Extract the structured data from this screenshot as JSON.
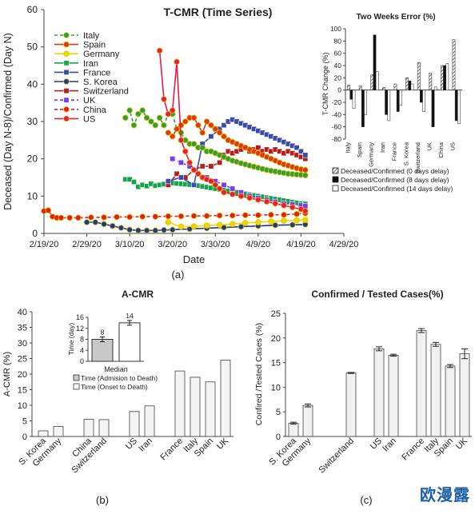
{
  "figure": {
    "watermark": "欧漫露"
  },
  "chart_data": [
    {
      "id": "a",
      "type": "line",
      "panel_label": "(a)",
      "title": "T-CMR (Time Series)",
      "xlabel": "Date",
      "ylabel": "Deceased (Day N-8)/Confirmed (Day N)",
      "ylim": [
        0,
        60
      ],
      "yticks": [
        0,
        10,
        20,
        30,
        40,
        50,
        60
      ],
      "xlim": [
        "2020-02-19",
        "2020-04-29"
      ],
      "xtick_labels": [
        "2/19/20",
        "2/29/20",
        "3/10/20",
        "3/20/20",
        "3/30/20",
        "4/9/20",
        "4/19/20",
        "4/29/20"
      ],
      "legend_position": "top-left",
      "series": [
        {
          "name": "Italy",
          "color": "#2e9e3e",
          "marker": "circle",
          "dash": "dashed",
          "x": [
            "2020-03-09",
            "2020-03-10",
            "2020-03-11",
            "2020-03-12",
            "2020-03-13",
            "2020-03-14",
            "2020-03-15",
            "2020-03-16",
            "2020-03-17",
            "2020-03-18",
            "2020-03-19",
            "2020-03-20",
            "2020-03-21",
            "2020-03-22",
            "2020-03-23",
            "2020-03-24",
            "2020-03-25",
            "2020-03-26",
            "2020-03-27",
            "2020-03-28",
            "2020-03-29",
            "2020-03-30",
            "2020-03-31",
            "2020-04-01",
            "2020-04-02",
            "2020-04-03",
            "2020-04-04",
            "2020-04-05",
            "2020-04-06",
            "2020-04-07",
            "2020-04-08",
            "2020-04-09",
            "2020-04-10",
            "2020-04-11",
            "2020-04-12",
            "2020-04-13",
            "2020-04-14",
            "2020-04-15",
            "2020-04-16",
            "2020-04-17",
            "2020-04-18",
            "2020-04-19",
            "2020-04-20"
          ],
          "y": [
            31,
            33,
            29,
            32,
            33,
            31,
            30,
            29,
            31,
            29,
            32,
            32,
            28,
            27,
            25,
            24,
            24,
            23,
            23,
            22,
            22,
            21.5,
            21,
            20.5,
            20,
            19.5,
            19.2,
            18.8,
            18.5,
            18.2,
            17.9,
            17.6,
            17.3,
            17,
            16.8,
            16.6,
            16.4,
            16.2,
            16,
            15.9,
            15.8,
            15.7,
            15.6
          ]
        },
        {
          "name": "Spain",
          "color": "#d93a1e",
          "marker": "circle",
          "dash": "solid",
          "x": [
            "2020-03-19",
            "2020-03-20",
            "2020-03-21",
            "2020-03-22",
            "2020-03-23",
            "2020-03-24",
            "2020-03-25",
            "2020-03-26",
            "2020-03-27",
            "2020-03-28",
            "2020-03-29",
            "2020-03-30",
            "2020-03-31",
            "2020-04-01",
            "2020-04-02",
            "2020-04-03",
            "2020-04-04",
            "2020-04-05",
            "2020-04-06",
            "2020-04-07",
            "2020-04-08",
            "2020-04-09",
            "2020-04-10",
            "2020-04-11",
            "2020-04-12",
            "2020-04-13",
            "2020-04-14",
            "2020-04-15",
            "2020-04-16",
            "2020-04-17",
            "2020-04-18",
            "2020-04-19",
            "2020-04-20"
          ],
          "y": [
            27,
            26,
            28,
            29,
            30,
            31,
            31,
            29,
            27,
            30,
            29,
            28,
            27,
            26,
            25,
            24.5,
            24,
            23.5,
            23,
            22.5,
            22,
            21.5,
            21,
            20.5,
            20,
            19.5,
            19,
            18.5,
            18.2,
            17.8,
            17.5,
            17.2,
            17
          ]
        },
        {
          "name": "Germany",
          "color": "#e8d800",
          "marker": "circle",
          "dash": "solid",
          "x": [
            "2020-03-19",
            "2020-03-22",
            "2020-03-25",
            "2020-03-28",
            "2020-03-31",
            "2020-04-03",
            "2020-04-06",
            "2020-04-09",
            "2020-04-12",
            "2020-04-15",
            "2020-04-18",
            "2020-04-20"
          ],
          "y": [
            3,
            1.8,
            1.9,
            2.1,
            2.3,
            2.5,
            2.8,
            3,
            3.2,
            3.4,
            3.5,
            3.6
          ]
        },
        {
          "name": "Iran",
          "color": "#16a34a",
          "marker": "square",
          "dash": "solid",
          "x": [
            "2020-03-09",
            "2020-03-10",
            "2020-03-11",
            "2020-03-12",
            "2020-03-13",
            "2020-03-14",
            "2020-03-15",
            "2020-03-16",
            "2020-03-17",
            "2020-03-18",
            "2020-03-19",
            "2020-03-20",
            "2020-03-21",
            "2020-03-22",
            "2020-03-23",
            "2020-03-24",
            "2020-03-25",
            "2020-03-26",
            "2020-03-27",
            "2020-03-28",
            "2020-03-29",
            "2020-03-30",
            "2020-03-31",
            "2020-04-01",
            "2020-04-02",
            "2020-04-03",
            "2020-04-04",
            "2020-04-05",
            "2020-04-06",
            "2020-04-07",
            "2020-04-08",
            "2020-04-09",
            "2020-04-10",
            "2020-04-11",
            "2020-04-12",
            "2020-04-13",
            "2020-04-14",
            "2020-04-15",
            "2020-04-16",
            "2020-04-17",
            "2020-04-18",
            "2020-04-19",
            "2020-04-20"
          ],
          "y": [
            14.5,
            14.5,
            13.8,
            12.5,
            13,
            12.7,
            13.3,
            12.8,
            13,
            13.2,
            13.5,
            13.5,
            13.4,
            13.3,
            13.2,
            13.1,
            13,
            12.8,
            12.6,
            12.4,
            12.2,
            12,
            11.8,
            11.6,
            11.4,
            11.2,
            11,
            10.8,
            10.6,
            10.4,
            10.2,
            10,
            9.8,
            9.6,
            9.4,
            9.2,
            9,
            8.8,
            8.6,
            8.4,
            8.2,
            8,
            7.9
          ]
        },
        {
          "name": "France",
          "color": "#3b4aa8",
          "marker": "square",
          "dash": "solid",
          "x": [
            "2020-03-19",
            "2020-03-22",
            "2020-03-25",
            "2020-03-27",
            "2020-03-29",
            "2020-03-31",
            "2020-04-01",
            "2020-04-02",
            "2020-04-03",
            "2020-04-04",
            "2020-04-05",
            "2020-04-06",
            "2020-04-07",
            "2020-04-08",
            "2020-04-09",
            "2020-04-10",
            "2020-04-11",
            "2020-04-12",
            "2020-04-13",
            "2020-04-14",
            "2020-04-15",
            "2020-04-16",
            "2020-04-17",
            "2020-04-18",
            "2020-04-19",
            "2020-04-20"
          ],
          "y": [
            14,
            15,
            13,
            24,
            26,
            28,
            29,
            30,
            30.5,
            30,
            29.5,
            29,
            28.5,
            28,
            27.5,
            27,
            26.5,
            26,
            25.5,
            25,
            24.5,
            24,
            23.5,
            23,
            22,
            21
          ]
        },
        {
          "name": "S. Korea",
          "color": "#1e3a8a",
          "marker": "circle",
          "dash": "solid",
          "x": [
            "2020-02-29",
            "2020-03-02",
            "2020-03-04",
            "2020-03-06",
            "2020-03-08",
            "2020-03-10",
            "2020-03-12",
            "2020-03-14",
            "2020-03-16",
            "2020-03-18",
            "2020-03-20",
            "2020-03-24",
            "2020-03-28",
            "2020-04-01",
            "2020-04-05",
            "2020-04-09",
            "2020-04-13",
            "2020-04-17",
            "2020-04-20"
          ],
          "y": [
            3,
            3,
            2.5,
            2,
            1.5,
            1,
            0.8,
            0.8,
            0.8,
            0.9,
            1,
            1.2,
            1.4,
            1.6,
            1.8,
            2,
            2.2,
            2.3,
            2.4
          ]
        },
        {
          "name": "Switzerland",
          "color": "#b91c1c",
          "marker": "square",
          "dash": "solid",
          "x": [
            "2020-03-19",
            "2020-03-21",
            "2020-03-23",
            "2020-03-25",
            "2020-03-27",
            "2020-03-29",
            "2020-03-31",
            "2020-04-01",
            "2020-04-02",
            "2020-04-03",
            "2020-04-04",
            "2020-04-05",
            "2020-04-06",
            "2020-04-07",
            "2020-04-08",
            "2020-04-09",
            "2020-04-10",
            "2020-04-11",
            "2020-04-12",
            "2020-04-13",
            "2020-04-14",
            "2020-04-15",
            "2020-04-16",
            "2020-04-17",
            "2020-04-18",
            "2020-04-19",
            "2020-04-20"
          ],
          "y": [
            13,
            16,
            15,
            17,
            18,
            18,
            19,
            21,
            22,
            21.5,
            22,
            22.5,
            23,
            22,
            22.5,
            23,
            22,
            22.5,
            22,
            22.5,
            22,
            21.5,
            22,
            21.5,
            21,
            20.5,
            20
          ]
        },
        {
          "name": "UK",
          "color": "#7c3aed",
          "marker": "square",
          "dash": "dashed",
          "x": [
            "2020-03-20",
            "2020-03-22",
            "2020-03-24",
            "2020-03-26",
            "2020-03-28",
            "2020-03-30",
            "2020-04-01",
            "2020-04-03",
            "2020-04-05",
            "2020-04-07",
            "2020-04-09",
            "2020-04-11",
            "2020-04-13",
            "2020-04-15",
            "2020-04-17",
            "2020-04-19",
            "2020-04-20"
          ],
          "y": [
            20,
            19,
            18,
            16,
            15,
            14,
            13,
            12,
            11,
            10,
            9.5,
            9,
            8.5,
            8,
            7.8,
            7.5,
            7.3
          ]
        },
        {
          "name": "China",
          "color": "#e11d1d",
          "marker": "circle",
          "dash": "dashed",
          "x": [
            "2020-02-19",
            "2020-02-20",
            "2020-02-21",
            "2020-02-22",
            "2020-02-23",
            "2020-02-25",
            "2020-02-27",
            "2020-03-01",
            "2020-03-04",
            "2020-03-07",
            "2020-03-10",
            "2020-03-13",
            "2020-03-16",
            "2020-03-19",
            "2020-03-22",
            "2020-03-25",
            "2020-03-28",
            "2020-03-31",
            "2020-04-03",
            "2020-04-06",
            "2020-04-09",
            "2020-04-12",
            "2020-04-15",
            "2020-04-18",
            "2020-04-20"
          ],
          "y": [
            6,
            6.2,
            4.5,
            4.2,
            4.2,
            4.2,
            4.2,
            4.3,
            4.3,
            4.4,
            4.4,
            4.5,
            4.5,
            4.6,
            4.6,
            4.7,
            4.7,
            4.8,
            4.8,
            4.9,
            4.9,
            5,
            5,
            5.2,
            5.4
          ]
        },
        {
          "name": "US",
          "color": "#e11d48",
          "marker": "circle",
          "dash": "solid",
          "x": [
            "2020-03-17",
            "2020-03-18",
            "2020-03-19",
            "2020-03-20",
            "2020-03-21",
            "2020-03-22",
            "2020-03-23",
            "2020-03-24",
            "2020-03-25",
            "2020-03-26",
            "2020-03-27",
            "2020-03-28",
            "2020-03-29",
            "2020-03-30",
            "2020-03-31",
            "2020-04-01",
            "2020-04-03",
            "2020-04-05",
            "2020-04-07",
            "2020-04-09",
            "2020-04-11",
            "2020-04-13",
            "2020-04-15",
            "2020-04-17",
            "2020-04-19",
            "2020-04-20"
          ],
          "y": [
            49,
            36,
            32,
            33,
            46,
            25,
            22,
            19,
            17,
            16,
            15,
            14.5,
            14,
            13,
            12,
            11,
            10.5,
            10,
            9.5,
            9,
            8.5,
            8,
            7.5,
            7,
            6.5,
            6
          ]
        }
      ]
    },
    {
      "id": "a-inset",
      "type": "bar",
      "title": "Two Weeks Error (%)",
      "ylabel": "T-CMR Change (%)",
      "ylim": [
        -80,
        100
      ],
      "yticks": [
        -80,
        -60,
        -40,
        -20,
        0,
        20,
        40,
        60,
        80,
        100
      ],
      "categories": [
        "Italy",
        "Spain",
        "Germany",
        "Iran",
        "France",
        "S. Korea",
        "Switzerland",
        "UK",
        "China",
        "US"
      ],
      "series": [
        {
          "name": "Deceased/Confirmed (0 days delay)",
          "pattern": "hatched",
          "values": [
            8,
            7,
            25,
            4,
            10,
            20,
            45,
            28,
            40,
            82
          ]
        },
        {
          "name": "Deceased/Confirmed (8 days delay)",
          "pattern": "solid",
          "values": [
            -15,
            -60,
            90,
            -40,
            -35,
            15,
            -20,
            -60,
            40,
            -50
          ]
        },
        {
          "name": "Deceased/Confirmed (14 days delay)",
          "pattern": "open",
          "values": [
            -30,
            -40,
            30,
            -50,
            -25,
            10,
            -35,
            5,
            43,
            -55
          ]
        }
      ],
      "legend_position": "bottom"
    },
    {
      "id": "b",
      "type": "bar",
      "panel_label": "(b)",
      "title": "A-CMR",
      "ylabel": "A-CMR (%)",
      "ylim": [
        0,
        40
      ],
      "yticks": [
        0,
        5,
        10,
        15,
        20,
        25,
        30,
        35,
        40
      ],
      "categories": [
        "S. Korea",
        "Germany",
        "China",
        "Switzerland",
        "US",
        "Iran",
        "France",
        "Italy",
        "Spain",
        "UK"
      ],
      "values": [
        1.8,
        3.2,
        5.5,
        5.4,
        8,
        9.8,
        21,
        19,
        17.5,
        24.5
      ]
    },
    {
      "id": "b-inset",
      "type": "bar",
      "title": "Median",
      "ylabel": "Time (day)",
      "ylim": [
        0,
        16
      ],
      "yticks": [
        0,
        4,
        8,
        12,
        16
      ],
      "categories": [
        "Time (Admision to Death)",
        "Time (Onset to Death)"
      ],
      "values": [
        8,
        14
      ],
      "data_labels": [
        "8",
        "14"
      ],
      "legend": [
        "Time (Admision to Death)",
        "Time (Onset to Death)"
      ]
    },
    {
      "id": "c",
      "type": "bar",
      "panel_label": "(c)",
      "title": "Confirmed / Tested Cases(%)",
      "ylabel": "Confired /Tested Cases (%)",
      "ylim": [
        0,
        25
      ],
      "yticks": [
        0,
        5,
        10,
        15,
        20,
        25
      ],
      "categories": [
        "S. Korea",
        "Germany",
        "Switzerland",
        "US",
        "Iran",
        "France",
        "Italy",
        "Spain",
        "UK"
      ],
      "values": [
        2.7,
        6.3,
        12.9,
        17.8,
        16.5,
        21.5,
        18.7,
        14.3,
        16.8
      ],
      "errors": [
        0.2,
        0.3,
        0.1,
        0.4,
        0.2,
        0.4,
        0.4,
        0.3,
        1
      ]
    }
  ]
}
